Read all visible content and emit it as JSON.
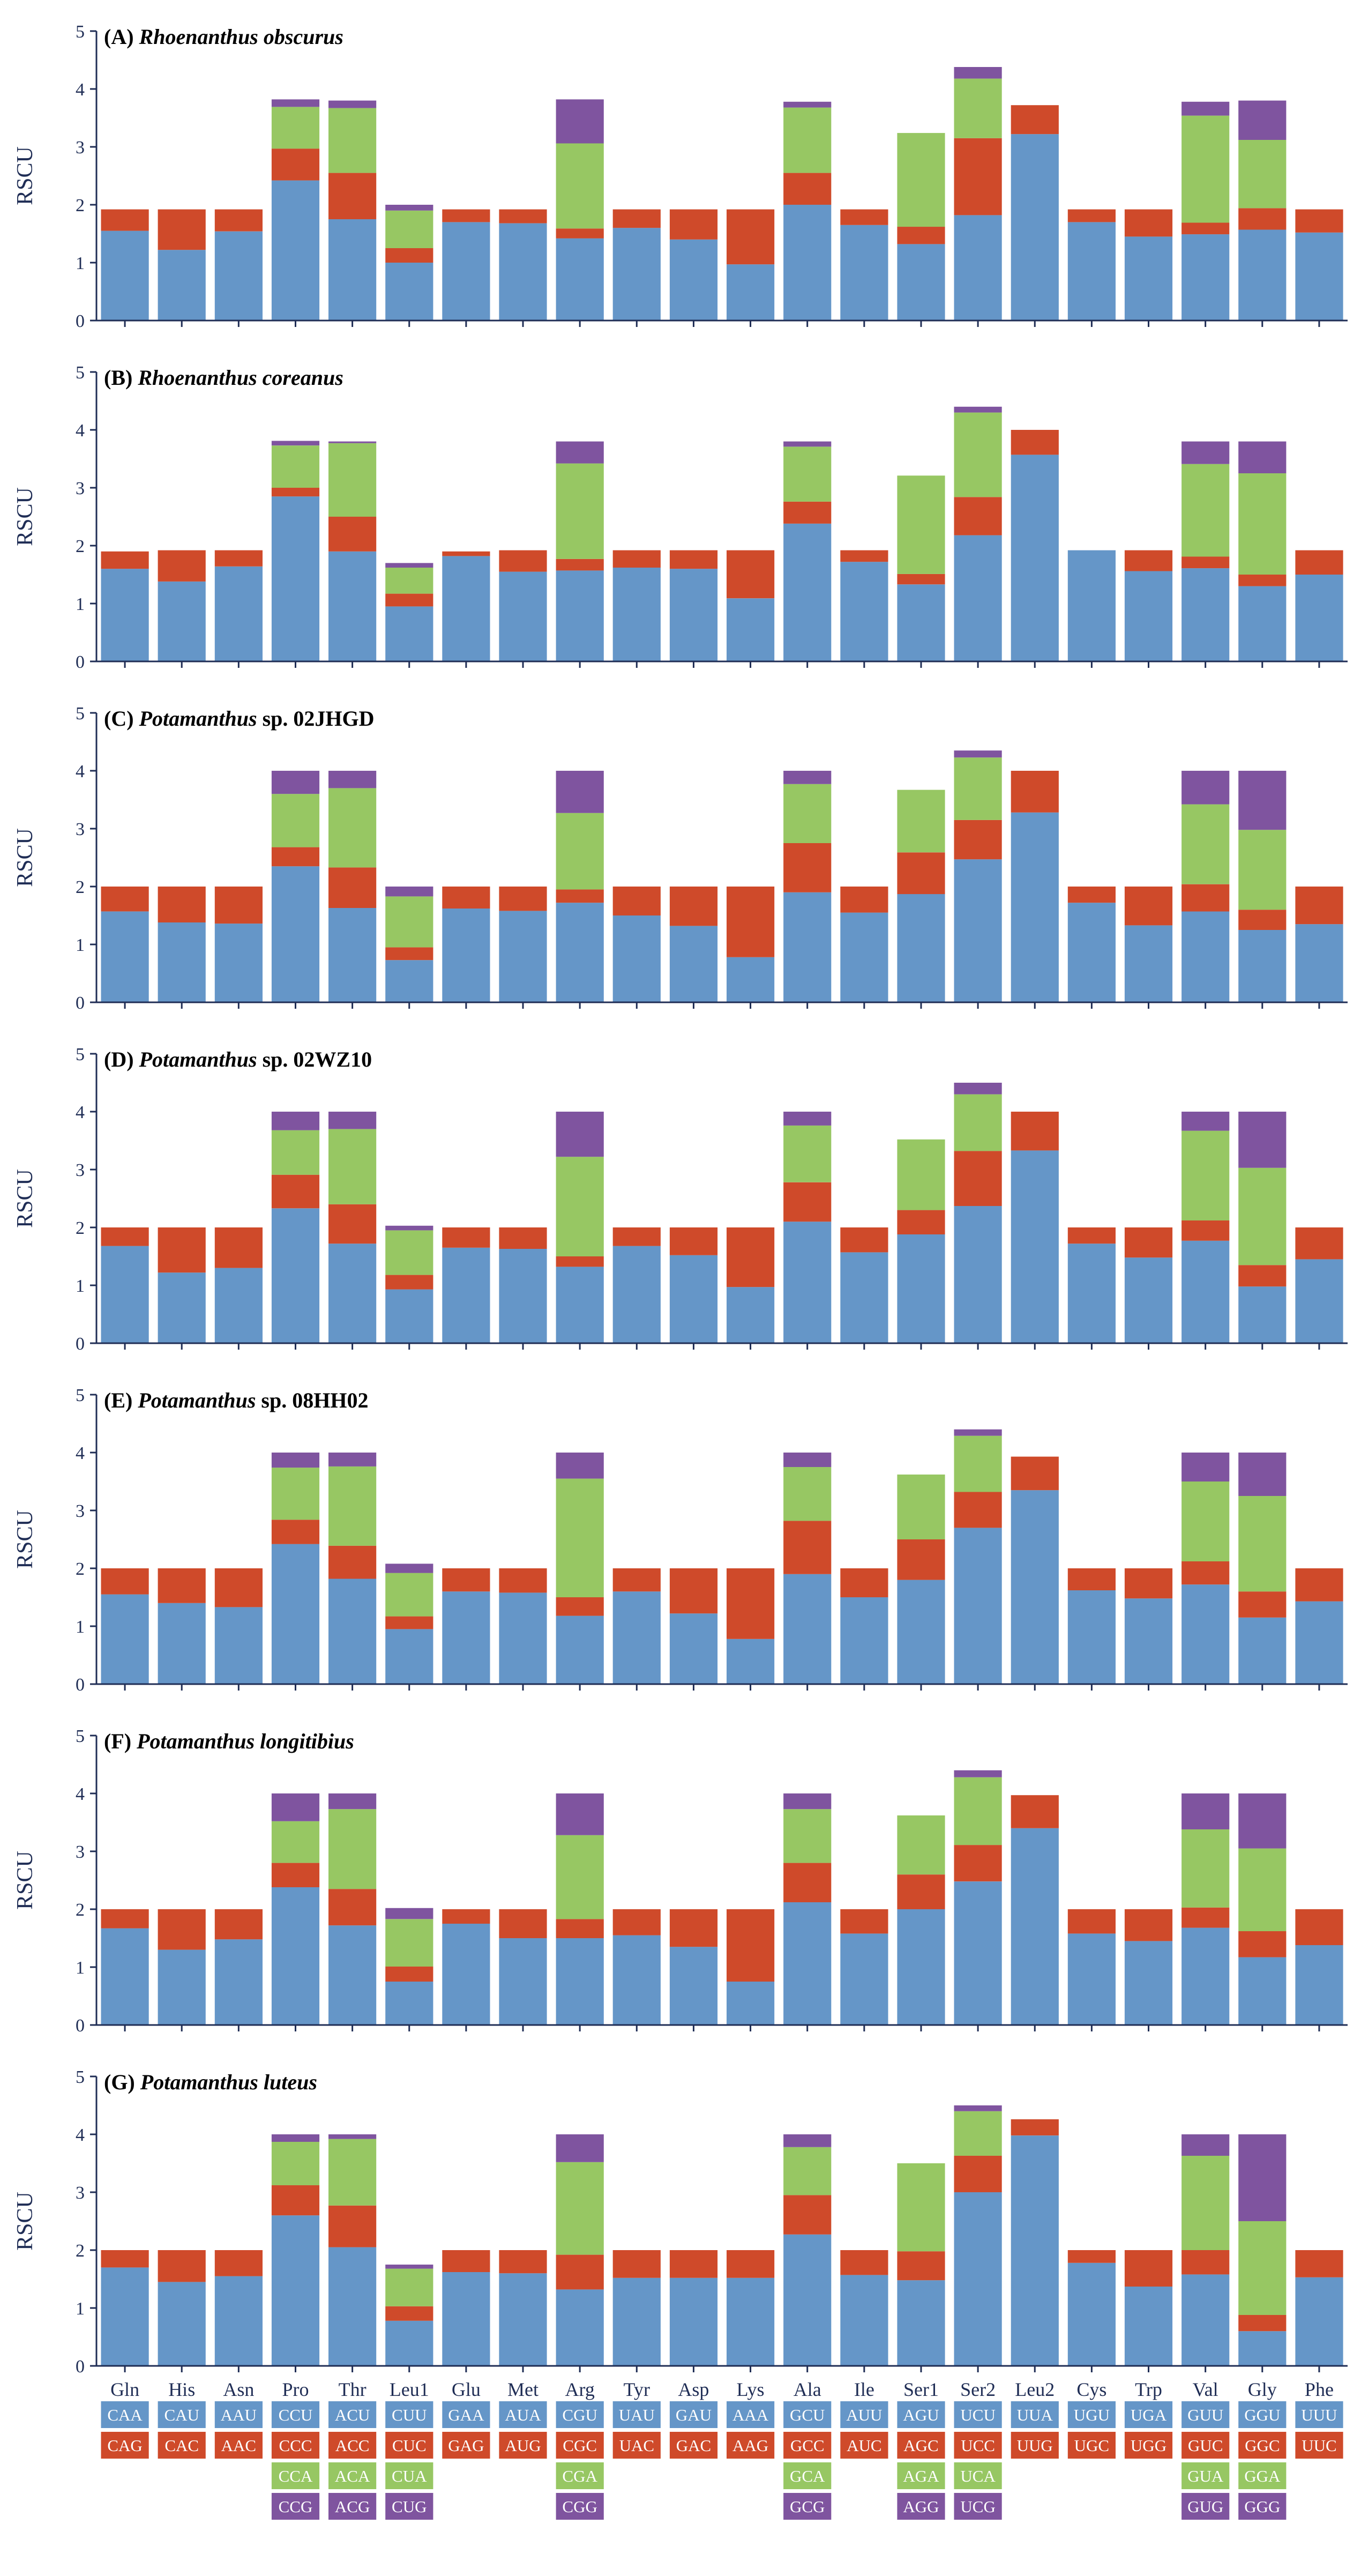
{
  "chart_data": {
    "type": "bar",
    "stacked": true,
    "ylabel": "RSCU",
    "ylim": [
      0,
      5
    ],
    "yticks": [
      0,
      1,
      2,
      3,
      4,
      5
    ],
    "categories": [
      "Gln",
      "His",
      "Asn",
      "Pro",
      "Thr",
      "Leu1",
      "Glu",
      "Met",
      "Arg",
      "Tyr",
      "Asp",
      "Lys",
      "Ala",
      "Ile",
      "Ser1",
      "Ser2",
      "Leu2",
      "Cys",
      "Trp",
      "Val",
      "Gly",
      "Phe"
    ],
    "colors": [
      "#6596c8",
      "#cf4a2a",
      "#97c763",
      "#7f549f"
    ],
    "codons": [
      [
        "CAA",
        "CAG"
      ],
      [
        "CAU",
        "CAC"
      ],
      [
        "AAU",
        "AAC"
      ],
      [
        "CCU",
        "CCC",
        "CCA",
        "CCG"
      ],
      [
        "ACU",
        "ACC",
        "ACA",
        "ACG"
      ],
      [
        "CUU",
        "CUC",
        "CUA",
        "CUG"
      ],
      [
        "GAA",
        "GAG"
      ],
      [
        "AUA",
        "AUG"
      ],
      [
        "CGU",
        "CGC",
        "CGA",
        "CGG"
      ],
      [
        "UAU",
        "UAC"
      ],
      [
        "GAU",
        "GAC"
      ],
      [
        "AAA",
        "AAG"
      ],
      [
        "GCU",
        "GCC",
        "GCA",
        "GCG"
      ],
      [
        "AUU",
        "AUC"
      ],
      [
        "AGU",
        "AGC",
        "AGA",
        "AGG"
      ],
      [
        "UCU",
        "UCC",
        "UCA",
        "UCG"
      ],
      [
        "UUA",
        "UUG"
      ],
      [
        "UGU",
        "UGC"
      ],
      [
        "UGA",
        "UGG"
      ],
      [
        "GUU",
        "GUC",
        "GUA",
        "GUG"
      ],
      [
        "GGU",
        "GGC",
        "GGA",
        "GGG"
      ],
      [
        "UUU",
        "UUC"
      ]
    ],
    "panels": [
      {
        "label": "(A)",
        "species": "Rhoenanthus obscurus",
        "rest": "",
        "stacks": [
          [
            1.55,
            0.37
          ],
          [
            1.22,
            0.7
          ],
          [
            1.54,
            0.38
          ],
          [
            2.42,
            0.55,
            0.72,
            0.13
          ],
          [
            1.75,
            0.8,
            1.12,
            0.13
          ],
          [
            1.0,
            0.25,
            0.65,
            0.1
          ],
          [
            1.7,
            0.22
          ],
          [
            1.68,
            0.24
          ],
          [
            1.42,
            0.17,
            1.47,
            0.76
          ],
          [
            1.6,
            0.32
          ],
          [
            1.4,
            0.52
          ],
          [
            0.97,
            0.95
          ],
          [
            2.0,
            0.55,
            1.13,
            0.1
          ],
          [
            1.65,
            0.27
          ],
          [
            1.32,
            0.3,
            1.62,
            0
          ],
          [
            1.82,
            1.33,
            1.03,
            0.2
          ],
          [
            3.22,
            0.5
          ],
          [
            1.7,
            0.22
          ],
          [
            1.45,
            0.47
          ],
          [
            1.49,
            0.2,
            1.85,
            0.24
          ],
          [
            1.57,
            0.37,
            1.18,
            0.68
          ],
          [
            1.52,
            0.4
          ]
        ]
      },
      {
        "label": "(B)",
        "species": "Rhoenanthus coreanus",
        "rest": "",
        "stacks": [
          [
            1.6,
            0.3
          ],
          [
            1.38,
            0.54
          ],
          [
            1.64,
            0.28
          ],
          [
            2.85,
            0.15,
            0.73,
            0.08
          ],
          [
            1.9,
            0.6,
            1.27,
            0.03
          ],
          [
            0.95,
            0.22,
            0.45,
            0.08
          ],
          [
            1.82,
            0.08
          ],
          [
            1.55,
            0.37
          ],
          [
            1.57,
            0.2,
            1.65,
            0.38
          ],
          [
            1.62,
            0.3
          ],
          [
            1.6,
            0.32
          ],
          [
            1.09,
            0.83
          ],
          [
            2.38,
            0.38,
            0.95,
            0.09
          ],
          [
            1.72,
            0.2
          ],
          [
            1.33,
            0.18,
            1.7,
            0
          ],
          [
            2.18,
            0.66,
            1.46,
            0.1
          ],
          [
            3.57,
            0.43
          ],
          [
            1.92,
            0
          ],
          [
            1.56,
            0.36
          ],
          [
            1.61,
            0.2,
            1.6,
            0.39
          ],
          [
            1.3,
            0.2,
            1.75,
            0.55
          ],
          [
            1.5,
            0.42
          ]
        ]
      },
      {
        "label": "(C)",
        "species": "Potamanthus",
        "rest": " sp. 02JHGD",
        "stacks": [
          [
            1.57,
            0.43
          ],
          [
            1.38,
            0.62
          ],
          [
            1.36,
            0.64
          ],
          [
            2.35,
            0.33,
            0.92,
            0.4
          ],
          [
            1.63,
            0.7,
            1.37,
            0.3
          ],
          [
            0.73,
            0.22,
            0.88,
            0.17
          ],
          [
            1.62,
            0.38
          ],
          [
            1.58,
            0.42
          ],
          [
            1.72,
            0.23,
            1.32,
            0.73
          ],
          [
            1.5,
            0.5
          ],
          [
            1.32,
            0.68
          ],
          [
            0.78,
            1.22
          ],
          [
            1.9,
            0.85,
            1.02,
            0.23
          ],
          [
            1.55,
            0.45
          ],
          [
            1.87,
            0.72,
            1.08,
            0
          ],
          [
            2.47,
            0.68,
            1.08,
            0.12
          ],
          [
            3.28,
            0.72
          ],
          [
            1.72,
            0.28
          ],
          [
            1.33,
            0.67
          ],
          [
            1.57,
            0.47,
            1.38,
            0.58
          ],
          [
            1.25,
            0.35,
            1.38,
            1.02
          ],
          [
            1.35,
            0.65
          ]
        ]
      },
      {
        "label": "(D)",
        "species": "Potamanthus",
        "rest": " sp. 02WZ10",
        "stacks": [
          [
            1.68,
            0.32
          ],
          [
            1.22,
            0.78
          ],
          [
            1.3,
            0.7
          ],
          [
            2.33,
            0.58,
            0.77,
            0.32
          ],
          [
            1.72,
            0.68,
            1.3,
            0.3
          ],
          [
            0.93,
            0.25,
            0.77,
            0.08
          ],
          [
            1.65,
            0.35
          ],
          [
            1.63,
            0.37
          ],
          [
            1.32,
            0.18,
            1.72,
            0.78
          ],
          [
            1.68,
            0.32
          ],
          [
            1.52,
            0.48
          ],
          [
            0.97,
            1.03
          ],
          [
            2.1,
            0.68,
            0.98,
            0.24
          ],
          [
            1.57,
            0.43
          ],
          [
            1.88,
            0.42,
            1.22,
            0
          ],
          [
            2.37,
            0.95,
            0.98,
            0.2
          ],
          [
            3.33,
            0.67
          ],
          [
            1.72,
            0.28
          ],
          [
            1.48,
            0.52
          ],
          [
            1.77,
            0.35,
            1.55,
            0.33
          ],
          [
            0.98,
            0.37,
            1.68,
            0.97
          ],
          [
            1.45,
            0.55
          ]
        ]
      },
      {
        "label": "(E)",
        "species": "Potamanthus",
        "rest": " sp. 08HH02",
        "stacks": [
          [
            1.55,
            0.45
          ],
          [
            1.4,
            0.6
          ],
          [
            1.33,
            0.67
          ],
          [
            2.42,
            0.42,
            0.9,
            0.26
          ],
          [
            1.82,
            0.57,
            1.37,
            0.24
          ],
          [
            0.95,
            0.22,
            0.75,
            0.16
          ],
          [
            1.6,
            0.4
          ],
          [
            1.58,
            0.42
          ],
          [
            1.18,
            0.32,
            2.05,
            0.45
          ],
          [
            1.6,
            0.4
          ],
          [
            1.22,
            0.78
          ],
          [
            0.78,
            1.22
          ],
          [
            1.9,
            0.92,
            0.93,
            0.25
          ],
          [
            1.5,
            0.5
          ],
          [
            1.8,
            0.7,
            1.12,
            0
          ],
          [
            2.7,
            0.62,
            0.97,
            0.11
          ],
          [
            3.35,
            0.58
          ],
          [
            1.62,
            0.38
          ],
          [
            1.48,
            0.52
          ],
          [
            1.72,
            0.4,
            1.38,
            0.5
          ],
          [
            1.15,
            0.45,
            1.65,
            0.75
          ],
          [
            1.43,
            0.57
          ]
        ]
      },
      {
        "label": "(F)",
        "species": "Potamanthus longitibius",
        "rest": "",
        "stacks": [
          [
            1.67,
            0.33
          ],
          [
            1.3,
            0.7
          ],
          [
            1.48,
            0.52
          ],
          [
            2.38,
            0.42,
            0.72,
            0.48
          ],
          [
            1.72,
            0.63,
            1.38,
            0.27
          ],
          [
            0.75,
            0.26,
            0.82,
            0.19
          ],
          [
            1.75,
            0.25
          ],
          [
            1.5,
            0.5
          ],
          [
            1.5,
            0.33,
            1.45,
            0.72
          ],
          [
            1.55,
            0.45
          ],
          [
            1.35,
            0.65
          ],
          [
            0.75,
            1.25
          ],
          [
            2.12,
            0.68,
            0.93,
            0.27
          ],
          [
            1.58,
            0.42
          ],
          [
            2.0,
            0.6,
            1.02,
            0
          ],
          [
            2.48,
            0.63,
            1.17,
            0.12
          ],
          [
            3.4,
            0.57
          ],
          [
            1.58,
            0.42
          ],
          [
            1.45,
            0.55
          ],
          [
            1.68,
            0.35,
            1.35,
            0.62
          ],
          [
            1.17,
            0.45,
            1.43,
            0.95
          ],
          [
            1.38,
            0.62
          ]
        ]
      },
      {
        "label": "(G)",
        "species": "Potamanthus luteus",
        "rest": "",
        "stacks": [
          [
            1.7,
            0.3
          ],
          [
            1.45,
            0.55
          ],
          [
            1.55,
            0.45
          ],
          [
            2.6,
            0.52,
            0.75,
            0.13
          ],
          [
            2.05,
            0.72,
            1.15,
            0.08
          ],
          [
            0.78,
            0.25,
            0.65,
            0.07
          ],
          [
            1.62,
            0.38
          ],
          [
            1.6,
            0.4
          ],
          [
            1.32,
            0.6,
            1.6,
            0.48
          ],
          [
            1.52,
            0.48
          ],
          [
            1.52,
            0.48
          ],
          [
            1.52,
            0.48
          ],
          [
            2.27,
            0.68,
            0.83,
            0.22
          ],
          [
            1.57,
            0.43
          ],
          [
            1.48,
            0.5,
            1.52,
            0
          ],
          [
            3.0,
            0.63,
            0.77,
            0.1
          ],
          [
            3.98,
            0.28
          ],
          [
            1.78,
            0.22
          ],
          [
            1.37,
            0.63
          ],
          [
            1.58,
            0.42,
            1.63,
            0.37
          ],
          [
            0.6,
            0.28,
            1.62,
            1.5
          ],
          [
            1.53,
            0.47
          ]
        ]
      }
    ]
  }
}
